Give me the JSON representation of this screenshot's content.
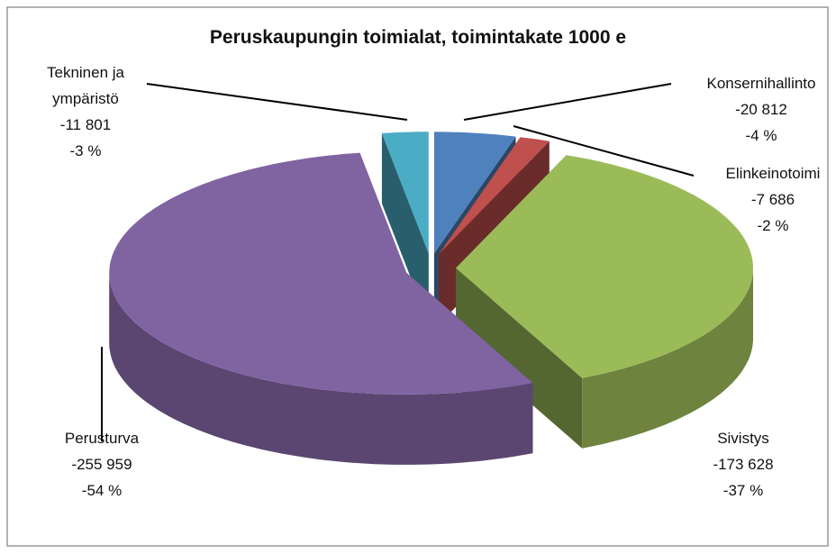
{
  "chart_data": {
    "type": "pie3d",
    "title": "Peruskaupungin toimialat, toimintakate 1000 e",
    "categories": [
      "Konsernihallinto",
      "Elinkeinotoimi",
      "Sivistys",
      "Perusturva",
      "Tekninen ja ympäristö"
    ],
    "values": [
      -20812,
      -7686,
      -173628,
      -255959,
      -11801
    ],
    "value_labels": [
      "-20 812",
      "-7 686",
      "-173 628",
      "-255 959",
      "-11 801"
    ],
    "percents": [
      -4,
      -2,
      -37,
      -54,
      -3
    ],
    "percent_labels": [
      "-4 %",
      "-2 %",
      "-37 %",
      "-54 %",
      "-3 %"
    ],
    "colors": [
      "#4f81bd",
      "#c0504d",
      "#9bbb59",
      "#8064a2",
      "#4bacc6"
    ]
  }
}
